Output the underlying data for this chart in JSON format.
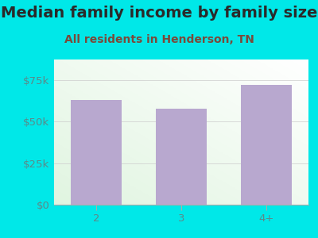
{
  "title": "Median family income by family size",
  "subtitle": "All residents in Henderson, TN",
  "categories": [
    "2",
    "3",
    "4+"
  ],
  "values": [
    63000,
    58000,
    72000
  ],
  "bar_color": "#b8a8cf",
  "background_color": "#00e8e8",
  "plot_bg_top": "#f5f5f0",
  "plot_bg_bottom": "#d8f0d8",
  "title_color": "#2a2a2a",
  "subtitle_color": "#7a4a3a",
  "tick_color": "#5a8a8a",
  "ylim": [
    0,
    87500
  ],
  "yticks": [
    0,
    25000,
    50000,
    75000
  ],
  "ytick_labels": [
    "$0",
    "$25k",
    "$50k",
    "$75k"
  ],
  "title_fontsize": 14,
  "subtitle_fontsize": 10,
  "tick_fontsize": 9.5,
  "bar_width": 0.6
}
